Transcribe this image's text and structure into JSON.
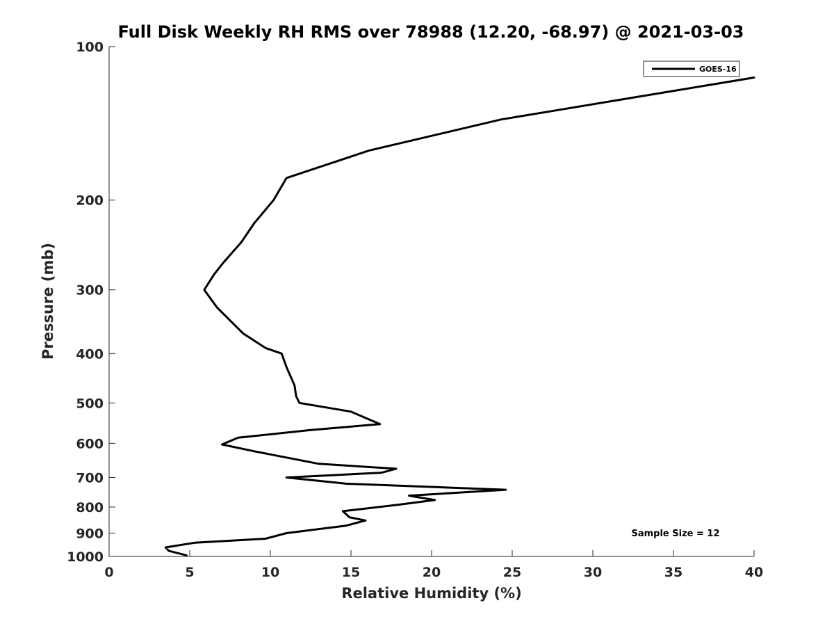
{
  "chart_data": {
    "type": "line",
    "title": "Full Disk Weekly RH RMS over 78988 (12.20, -68.97) @ 2021-03-03",
    "xlabel": "Relative Humidity (%)",
    "ylabel": "Pressure (mb)",
    "xlim": [
      0,
      40
    ],
    "ylim": [
      100,
      1000
    ],
    "y_scale": "log",
    "y_reversed": true,
    "x_ticks": [
      0,
      5,
      10,
      15,
      20,
      25,
      30,
      35,
      40
    ],
    "y_ticks": [
      100,
      200,
      300,
      400,
      500,
      600,
      700,
      800,
      900,
      1000
    ],
    "grid": false,
    "legend_position": "top-right",
    "annotation": "Sample Size = 12",
    "series": [
      {
        "name": "GOES-16",
        "color": "#000000",
        "points": [
          [
            40.0,
            115
          ],
          [
            24.3,
            139
          ],
          [
            16.1,
            160
          ],
          [
            11.0,
            181
          ],
          [
            10.2,
            200
          ],
          [
            9.0,
            222
          ],
          [
            8.2,
            242
          ],
          [
            7.1,
            265
          ],
          [
            6.5,
            280
          ],
          [
            5.9,
            300
          ],
          [
            6.7,
            325
          ],
          [
            8.3,
            365
          ],
          [
            9.7,
            390
          ],
          [
            10.7,
            400
          ],
          [
            11.0,
            425
          ],
          [
            11.5,
            462
          ],
          [
            11.6,
            485
          ],
          [
            11.8,
            500
          ],
          [
            15.0,
            520
          ],
          [
            16.8,
            550
          ],
          [
            12.5,
            565
          ],
          [
            8.0,
            585
          ],
          [
            7.0,
            603
          ],
          [
            9.0,
            622
          ],
          [
            13.0,
            658
          ],
          [
            17.8,
            673
          ],
          [
            16.9,
            685
          ],
          [
            11.0,
            700
          ],
          [
            14.7,
            720
          ],
          [
            24.6,
            740
          ],
          [
            18.6,
            760
          ],
          [
            20.2,
            775
          ],
          [
            17.9,
            792
          ],
          [
            14.5,
            815
          ],
          [
            14.9,
            838
          ],
          [
            15.9,
            850
          ],
          [
            14.7,
            870
          ],
          [
            11.0,
            900
          ],
          [
            9.7,
            923
          ],
          [
            5.3,
            940
          ],
          [
            3.5,
            960
          ],
          [
            3.7,
            975
          ],
          [
            4.8,
            995
          ]
        ]
      }
    ]
  }
}
